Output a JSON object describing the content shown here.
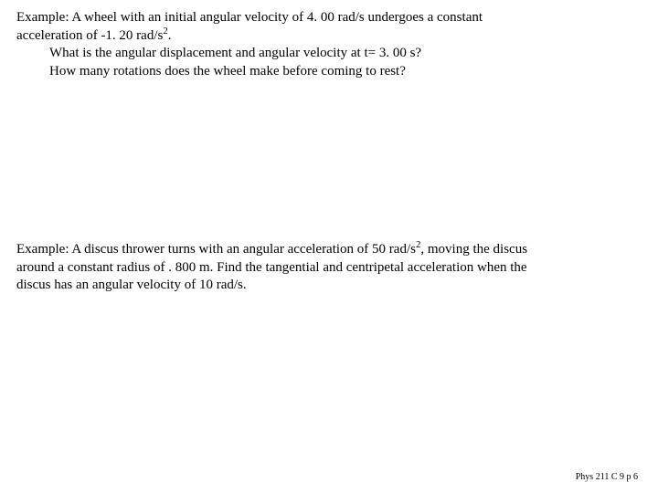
{
  "example1": {
    "line1_pre": "Example: A wheel with an initial angular velocity of 4. 00 rad/s undergoes a constant",
    "line2_pre": "acceleration of -1. 20 rad/s",
    "line2_sup": "2",
    "line2_post": ".",
    "line3": "What is the angular displacement and angular velocity at t= 3. 00 s?",
    "line4": "How many rotations does the wheel make before coming to rest?"
  },
  "example2": {
    "line1_pre": "Example: A discus thrower turns with an angular acceleration of 50 rad/s",
    "line1_sup": "2",
    "line1_post": ", moving the discus",
    "line2": "around a constant radius of . 800 m.  Find the tangential and centripetal acceleration when the",
    "line3": "discus has an angular velocity of 10 rad/s."
  },
  "footer": "Phys 211 C 9 p 6"
}
